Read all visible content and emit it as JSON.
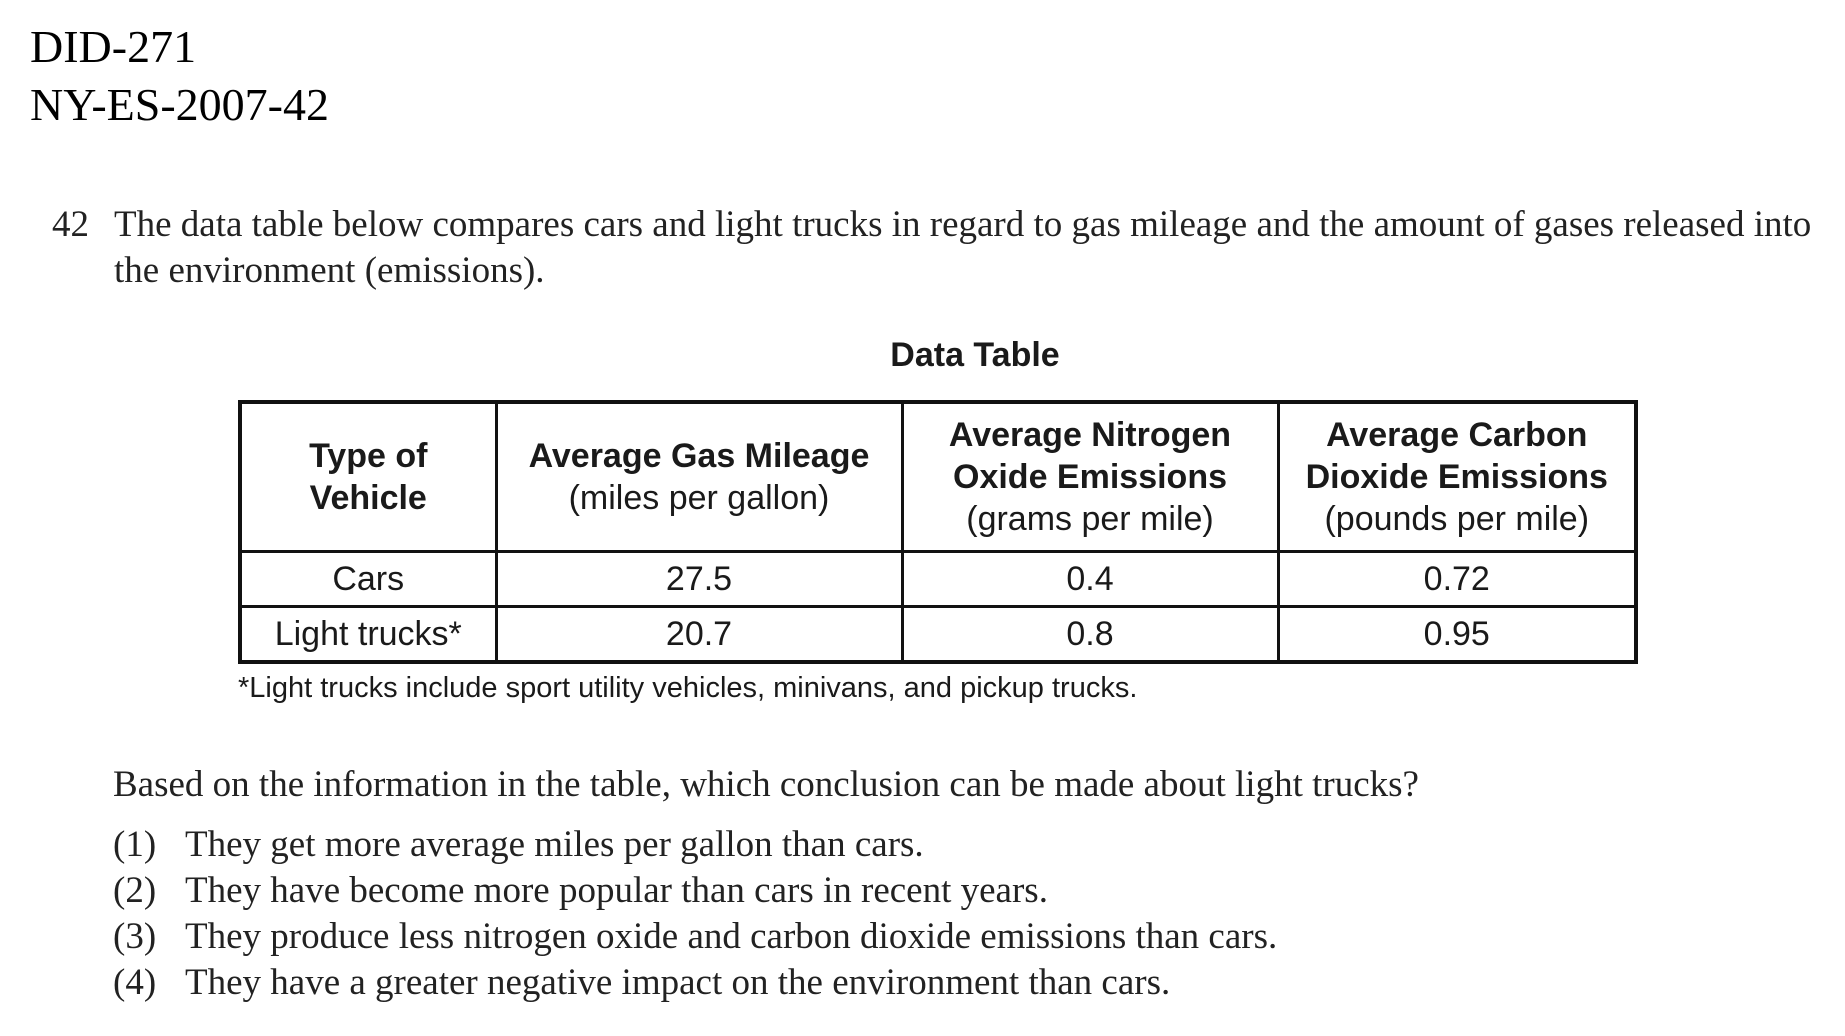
{
  "header": {
    "id_line_1": "DID-271",
    "id_line_2": "NY-ES-2007-42"
  },
  "question": {
    "number": "42",
    "text": "The data table below compares cars and light trucks in regard to gas mileage and the amount of gases released into the environment (emissions)."
  },
  "table": {
    "title": "Data Table",
    "headers": [
      {
        "label": "Type of Vehicle",
        "unit": ""
      },
      {
        "label": "Average Gas Mileage",
        "unit": "(miles per gallon)"
      },
      {
        "label": "Average Nitrogen Oxide Emissions",
        "unit": "(grams per mile)"
      },
      {
        "label": "Average Carbon Dioxide Emissions",
        "unit": "(pounds per mile)"
      }
    ],
    "rows": [
      [
        "Cars",
        "27.5",
        "0.4",
        "0.72"
      ],
      [
        "Light trucks*",
        "20.7",
        "0.8",
        "0.95"
      ]
    ],
    "footnote": "*Light trucks include sport utility vehicles, minivans, and pickup trucks."
  },
  "prompt": "Based on the information in the table, which conclusion can be made about light trucks?",
  "choices": [
    {
      "num": "(1)",
      "text": "They get more average miles per gallon than cars."
    },
    {
      "num": "(2)",
      "text": "They have become more popular than cars in recent years."
    },
    {
      "num": "(3)",
      "text": "They produce less nitrogen oxide and carbon dioxide emissions than cars."
    },
    {
      "num": "(4)",
      "text": "They have a greater negative impact on the environment than cars."
    }
  ]
}
